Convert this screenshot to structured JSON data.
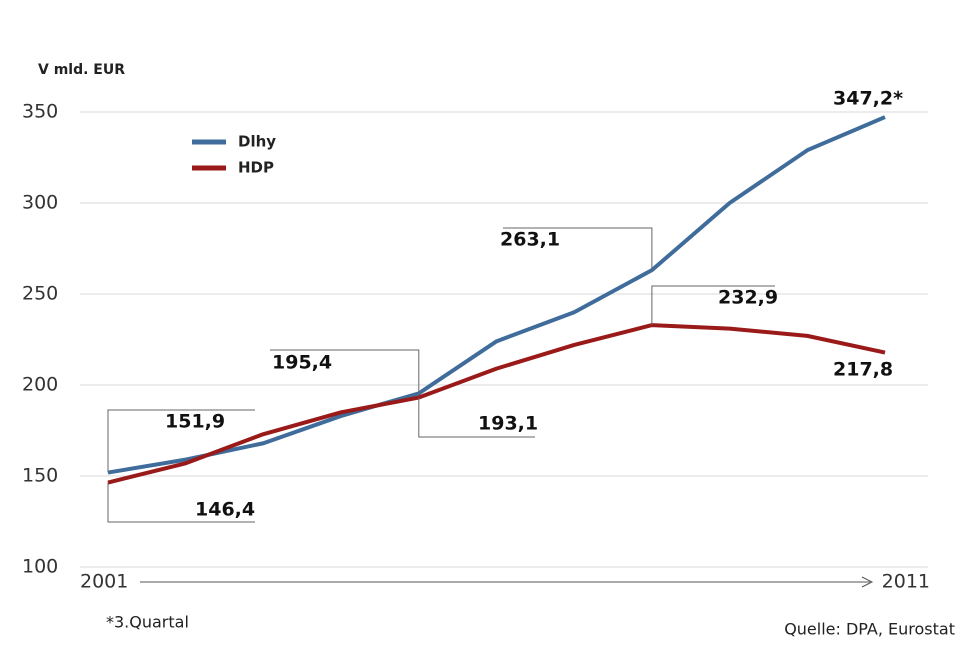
{
  "chart_data": {
    "type": "line",
    "y_label": "V mld. EUR",
    "categories": [
      "2001",
      null,
      null,
      null,
      null,
      null,
      null,
      null,
      null,
      null,
      "2011"
    ],
    "series": [
      {
        "name": "Dlhy",
        "color": "#3f6c9b",
        "values": [
          151.9,
          159,
          168,
          183,
          195.4,
          224,
          240,
          263.1,
          300,
          329,
          347.2
        ],
        "value_labels": [
          "151,9",
          null,
          null,
          null,
          "195,4",
          null,
          null,
          "263,1",
          null,
          null,
          "347,2*"
        ]
      },
      {
        "name": "HDP",
        "color": "#9a1a1a",
        "values": [
          146.4,
          157,
          173,
          185,
          193.1,
          209,
          222,
          232.9,
          231,
          227,
          217.8
        ],
        "value_labels": [
          "146,4",
          null,
          null,
          null,
          "193,1",
          null,
          null,
          "232,9",
          null,
          null,
          "217,8"
        ]
      }
    ],
    "ylim": [
      100,
      350
    ],
    "yticks": [
      100,
      150,
      200,
      250,
      300,
      350
    ],
    "grid": true,
    "legend": "upper left",
    "footnote": "*3.Quartal",
    "source": "Quelle: DPA, Eurostat"
  }
}
